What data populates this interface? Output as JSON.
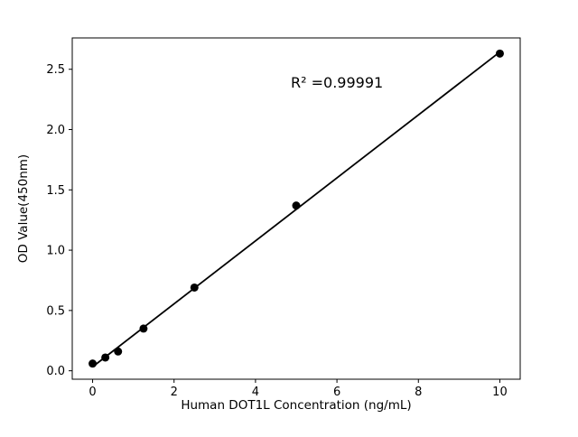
{
  "chart_data": {
    "type": "scatter",
    "title": "",
    "xlabel": "Human DOT1L Concentration (ng/mL)",
    "ylabel": "OD Value(450nm)",
    "x": [
      0,
      0.3125,
      0.625,
      1.25,
      2.5,
      5,
      10
    ],
    "y": [
      0.06,
      0.11,
      0.16,
      0.35,
      0.69,
      1.37,
      2.63
    ],
    "xlim": [
      -0.5,
      10.5
    ],
    "ylim": [
      -0.07,
      2.76
    ],
    "xticks": [
      0,
      2,
      4,
      6,
      8,
      10
    ],
    "yticks": [
      0.0,
      0.5,
      1.0,
      1.5,
      2.0,
      2.5
    ],
    "grid": false,
    "legend": "none",
    "annotation": "R² =0.99991",
    "annotation_pos": {
      "x": 6.0,
      "y": 2.35
    },
    "line_color": "#000000",
    "marker_color": "#000000",
    "axis_color": "#000000",
    "background_color": "#ffffff",
    "marker_style": "filled-circle",
    "fit": "linear-regression-line"
  }
}
